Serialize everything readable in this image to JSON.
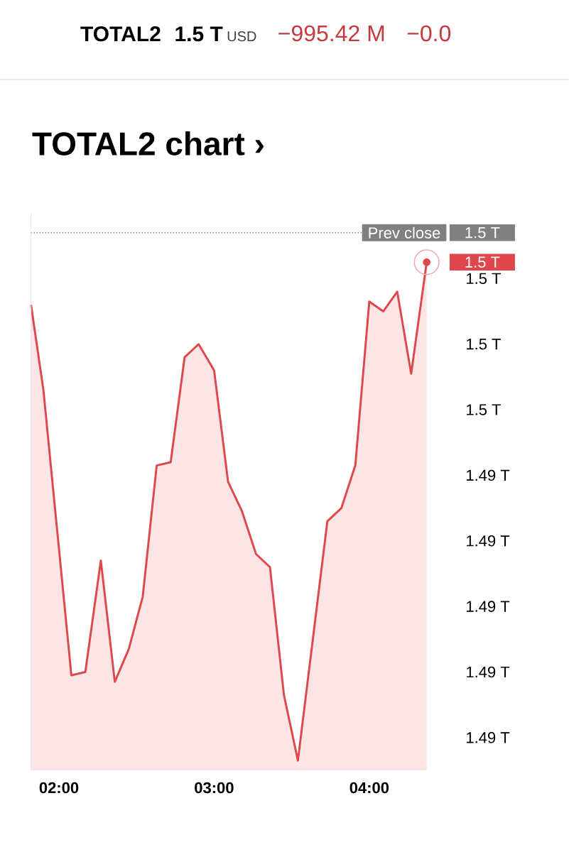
{
  "chart_data": {
    "type": "area",
    "title": "TOTAL2 chart ›",
    "annotations": [
      "TOTAL2",
      "1.5 T",
      "USD",
      "−995.42 M",
      "−0.0",
      {
        "text": "1.5 T",
        "x": 4.37,
        "y": 1.5
      },
      "1.5 T"
    ],
    "x": [
      1.82,
      1.9,
      2.08,
      2.17,
      2.27,
      2.36,
      2.45,
      2.54,
      2.63,
      2.72,
      2.81,
      2.9,
      3.0,
      3.09,
      3.18,
      3.27,
      3.36,
      3.45,
      3.54,
      3.73,
      3.82,
      3.91,
      4.0,
      4.09,
      4.18,
      4.27,
      4.37
    ],
    "series": [
      {
        "color": "#e0474c",
        "values": [
          1.4987,
          1.4961,
          1.4874,
          1.4875,
          1.4909,
          1.4872,
          1.4882,
          1.4898,
          1.4938,
          1.4939,
          1.4971,
          1.4975,
          1.4967,
          1.4933,
          1.4924,
          1.4911,
          1.4907,
          1.4868,
          1.4848,
          1.4921,
          1.4925,
          1.4938,
          1.4988,
          1.4985,
          1.4991,
          1.4966,
          1.5
        ]
      }
    ],
    "xlim": [
      1.82,
      4.37
    ],
    "xticks": [
      {
        "value": 2,
        "label": "02:00"
      },
      {
        "value": 3,
        "label": "03:00"
      },
      {
        "value": 4,
        "label": "04:00"
      }
    ],
    "ylim": [
      1.4845,
      1.5015
    ],
    "yticks": [
      {
        "value": 1.4995,
        "label": "1.5 T"
      },
      {
        "value": 1.4975,
        "label": "1.5 T"
      },
      {
        "value": 1.4955,
        "label": "1.5 T"
      },
      {
        "value": 1.4935,
        "label": "1.49 T"
      },
      {
        "value": 1.4915,
        "label": "1.49 T"
      },
      {
        "value": 1.4895,
        "label": "1.49 T"
      },
      {
        "value": 1.4875,
        "label": "1.49 T"
      },
      {
        "value": 1.4855,
        "label": "1.49 T"
      }
    ],
    "ref_lines": [
      {
        "axis": "y",
        "value": 1.5009,
        "label": "Prev close",
        "color": "#808080",
        "line_style": "dotted"
      }
    ]
  }
}
